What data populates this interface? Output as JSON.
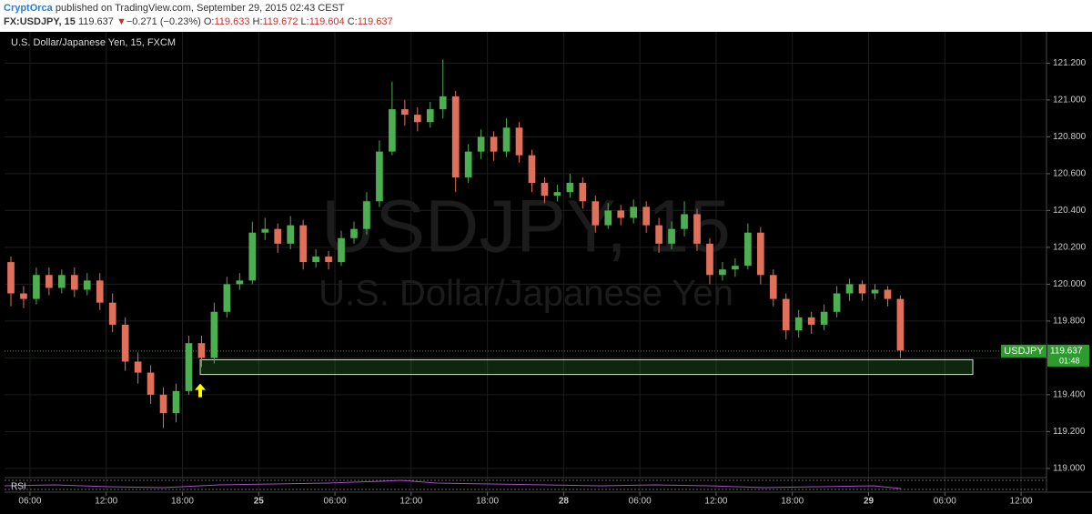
{
  "header": {
    "publisher": "CryptOrca",
    "published": "published on TradingView.com, September 29, 2015 02:43 CEST",
    "symbol": "FX:USDJPY, 15",
    "last": "119.637",
    "change": "−0.271 (−0.23%)",
    "ohlc": [
      {
        "label": "O:",
        "value": "119.633"
      },
      {
        "label": "H:",
        "value": "119.672"
      },
      {
        "label": "L:",
        "value": "119.604"
      },
      {
        "label": "C:",
        "value": "119.637"
      }
    ]
  },
  "chart_data": {
    "type": "candlestick",
    "title": "U.S. Dollar/Japanese Yen, 15, FXCM",
    "watermark": "USDJPY, 15",
    "watermark_subtitle": "U.S. Dollar/Japanese Yen",
    "symbol": "USDJPY",
    "last_price": 119.637,
    "countdown": "01:48",
    "indicator": "RSI",
    "up_color": "#4caf50",
    "down_color": "#e0705a",
    "grid": true,
    "xlim": [
      0,
      82
    ],
    "ylim": [
      118.95,
      121.37
    ],
    "xticks": [
      {
        "value": 2,
        "label": "06:00"
      },
      {
        "value": 8,
        "label": "12:00"
      },
      {
        "value": 14,
        "label": "18:00"
      },
      {
        "value": 20,
        "label": "25"
      },
      {
        "value": 26,
        "label": "06:00"
      },
      {
        "value": 32,
        "label": "12:00"
      },
      {
        "value": 38,
        "label": "18:00"
      },
      {
        "value": 44,
        "label": "28"
      },
      {
        "value": 50,
        "label": "06:00"
      },
      {
        "value": 56,
        "label": "12:00"
      },
      {
        "value": 62,
        "label": "18:00"
      },
      {
        "value": 68,
        "label": "29"
      },
      {
        "value": 74,
        "label": "06:00"
      },
      {
        "value": 80,
        "label": "12:00"
      }
    ],
    "yticks": [
      {
        "value": 119.0,
        "label": "119.000"
      },
      {
        "value": 119.2,
        "label": "119.200"
      },
      {
        "value": 119.4,
        "label": "119.400"
      },
      {
        "value": 119.6,
        "label": "119.600"
      },
      {
        "value": 119.8,
        "label": "119.800"
      },
      {
        "value": 120.0,
        "label": "120.000"
      },
      {
        "value": 120.2,
        "label": "120.200"
      },
      {
        "value": 120.4,
        "label": "120.400"
      },
      {
        "value": 120.6,
        "label": "120.600"
      },
      {
        "value": 120.8,
        "label": "120.800"
      },
      {
        "value": 121.0,
        "label": "121.000"
      },
      {
        "value": 121.2,
        "label": "121.200"
      }
    ],
    "zone": {
      "x": [
        15.4,
        76.2
      ],
      "y": [
        119.51,
        119.59
      ],
      "color": "#2e9b2e"
    },
    "x": [
      0.5,
      1.5,
      2.5,
      3.5,
      4.5,
      5.5,
      6.5,
      7.5,
      8.5,
      9.5,
      10.5,
      11.5,
      12.5,
      13.5,
      14.5,
      15.5,
      16.5,
      17.5,
      18.5,
      19.5,
      20.5,
      21.5,
      22.5,
      23.5,
      24.5,
      25.5,
      26.5,
      27.5,
      28.5,
      29.5,
      30.5,
      31.5,
      32.5,
      33.5,
      34.5,
      35.5,
      36.5,
      37.5,
      38.5,
      39.5,
      40.5,
      41.5,
      42.5,
      43.5,
      44.5,
      45.5,
      46.5,
      47.5,
      48.5,
      49.5,
      50.5,
      51.5,
      52.5,
      53.5,
      54.5,
      55.5,
      56.5,
      57.5,
      58.5,
      59.5,
      60.5,
      61.5,
      62.5,
      63.5,
      64.5,
      65.5,
      66.5,
      67.5,
      68.5,
      69.5,
      70.5
    ],
    "open": [
      120.12,
      119.95,
      119.92,
      120.05,
      119.98,
      120.05,
      119.97,
      120.02,
      119.9,
      119.78,
      119.58,
      119.52,
      119.4,
      119.3,
      119.42,
      119.68,
      119.6,
      119.85,
      120.0,
      120.02,
      120.28,
      120.3,
      120.22,
      120.32,
      120.12,
      120.15,
      120.12,
      120.25,
      120.3,
      120.45,
      120.72,
      120.95,
      120.92,
      120.88,
      120.95,
      121.02,
      120.58,
      120.72,
      120.8,
      120.72,
      120.85,
      120.7,
      120.55,
      120.48,
      120.5,
      120.55,
      120.45,
      120.32,
      120.4,
      120.36,
      120.42,
      120.32,
      120.22,
      120.3,
      120.38,
      120.22,
      120.05,
      120.08,
      120.1,
      120.28,
      120.05,
      119.92,
      119.75,
      119.82,
      119.78,
      119.85,
      119.95,
      120.0,
      119.95,
      119.97,
      119.92
    ],
    "high": [
      120.15,
      119.99,
      120.09,
      120.09,
      120.08,
      120.09,
      120.06,
      120.06,
      119.95,
      119.82,
      119.63,
      119.56,
      119.44,
      119.46,
      119.72,
      119.72,
      119.9,
      120.04,
      120.06,
      120.34,
      120.36,
      120.33,
      120.37,
      120.35,
      120.19,
      120.18,
      120.29,
      120.34,
      120.5,
      120.78,
      121.1,
      121.0,
      120.96,
      120.99,
      121.22,
      121.05,
      120.76,
      120.84,
      120.83,
      120.9,
      120.88,
      120.73,
      120.58,
      120.54,
      120.6,
      120.58,
      120.48,
      120.44,
      120.43,
      120.46,
      120.45,
      120.36,
      120.34,
      120.45,
      120.41,
      120.25,
      120.12,
      120.14,
      120.33,
      120.31,
      120.08,
      119.95,
      119.86,
      119.85,
      119.89,
      119.99,
      120.03,
      120.02,
      120.0,
      119.99,
      119.94
    ],
    "low": [
      119.88,
      119.87,
      119.89,
      119.94,
      119.95,
      119.93,
      119.94,
      119.86,
      119.74,
      119.53,
      119.46,
      119.35,
      119.22,
      119.25,
      119.4,
      119.55,
      119.57,
      119.82,
      119.97,
      120.0,
      120.24,
      120.17,
      120.19,
      120.08,
      120.09,
      120.08,
      120.1,
      120.22,
      120.27,
      120.42,
      120.7,
      120.86,
      120.83,
      120.85,
      120.9,
      120.5,
      120.55,
      120.68,
      120.67,
      120.69,
      120.66,
      120.5,
      120.44,
      120.45,
      120.47,
      120.41,
      120.28,
      120.3,
      120.32,
      120.33,
      120.28,
      120.17,
      120.19,
      120.26,
      120.18,
      120.0,
      120.02,
      120.04,
      120.08,
      120.0,
      119.88,
      119.7,
      119.71,
      119.73,
      119.75,
      119.82,
      119.91,
      119.91,
      119.92,
      119.88,
      119.6
    ],
    "close": [
      119.95,
      119.92,
      120.05,
      119.98,
      120.05,
      119.97,
      120.02,
      119.9,
      119.78,
      119.58,
      119.52,
      119.4,
      119.3,
      119.42,
      119.68,
      119.6,
      119.85,
      120.0,
      120.02,
      120.28,
      120.3,
      120.22,
      120.32,
      120.12,
      120.15,
      120.12,
      120.25,
      120.3,
      120.45,
      120.72,
      120.95,
      120.92,
      120.88,
      120.95,
      121.02,
      120.58,
      120.72,
      120.8,
      120.72,
      120.85,
      120.7,
      120.55,
      120.48,
      120.5,
      120.55,
      120.45,
      120.32,
      120.4,
      120.36,
      120.42,
      120.32,
      120.22,
      120.3,
      120.38,
      120.22,
      120.05,
      120.08,
      120.1,
      120.28,
      120.05,
      119.92,
      119.75,
      119.82,
      119.78,
      119.85,
      119.95,
      120.0,
      119.95,
      119.97,
      119.92,
      119.64
    ]
  }
}
